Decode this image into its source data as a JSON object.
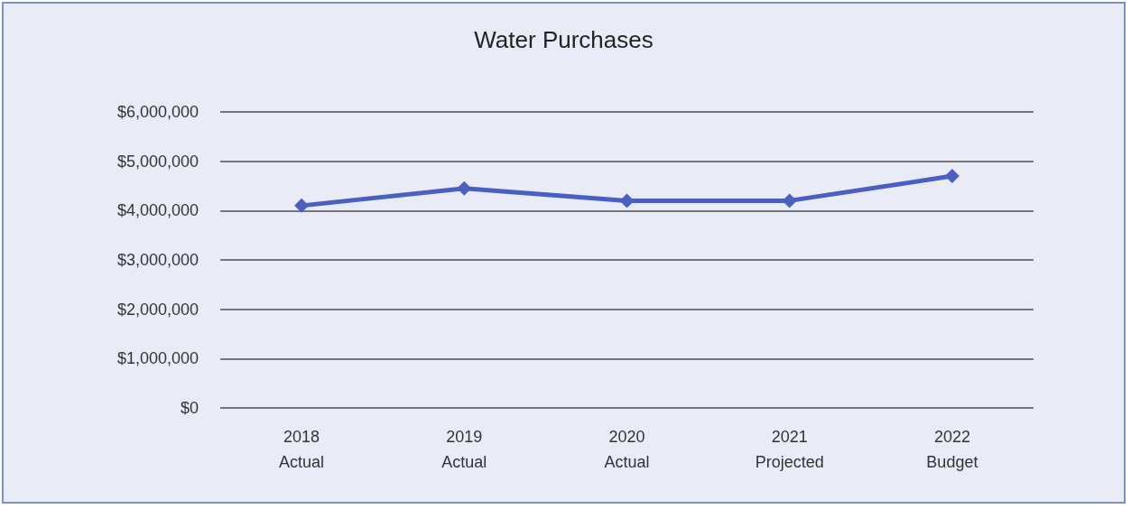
{
  "chart_data": {
    "type": "line",
    "title": "Water Purchases",
    "categories": [
      "2018\nActual",
      "2019\nActual",
      "2020\nActual",
      "2021\nProjected",
      "2022\nBudget"
    ],
    "series": [
      {
        "color": "#4a5fc1",
        "values": [
          4100000,
          4450000,
          4200000,
          4200000,
          4700000
        ]
      }
    ],
    "ylim": [
      0,
      6000000
    ],
    "yticks": [
      {
        "value": 0,
        "label": "$0"
      },
      {
        "value": 1000000,
        "label": "$1,000,000"
      },
      {
        "value": 2000000,
        "label": "$2,000,000"
      },
      {
        "value": 3000000,
        "label": "$3,000,000"
      },
      {
        "value": 4000000,
        "label": "$4,000,000"
      },
      {
        "value": 5000000,
        "label": "$5,000,000"
      },
      {
        "value": 6000000,
        "label": "$6,000,000"
      }
    ],
    "grid": "y",
    "marker": "diamond",
    "line_style": "solid"
  }
}
